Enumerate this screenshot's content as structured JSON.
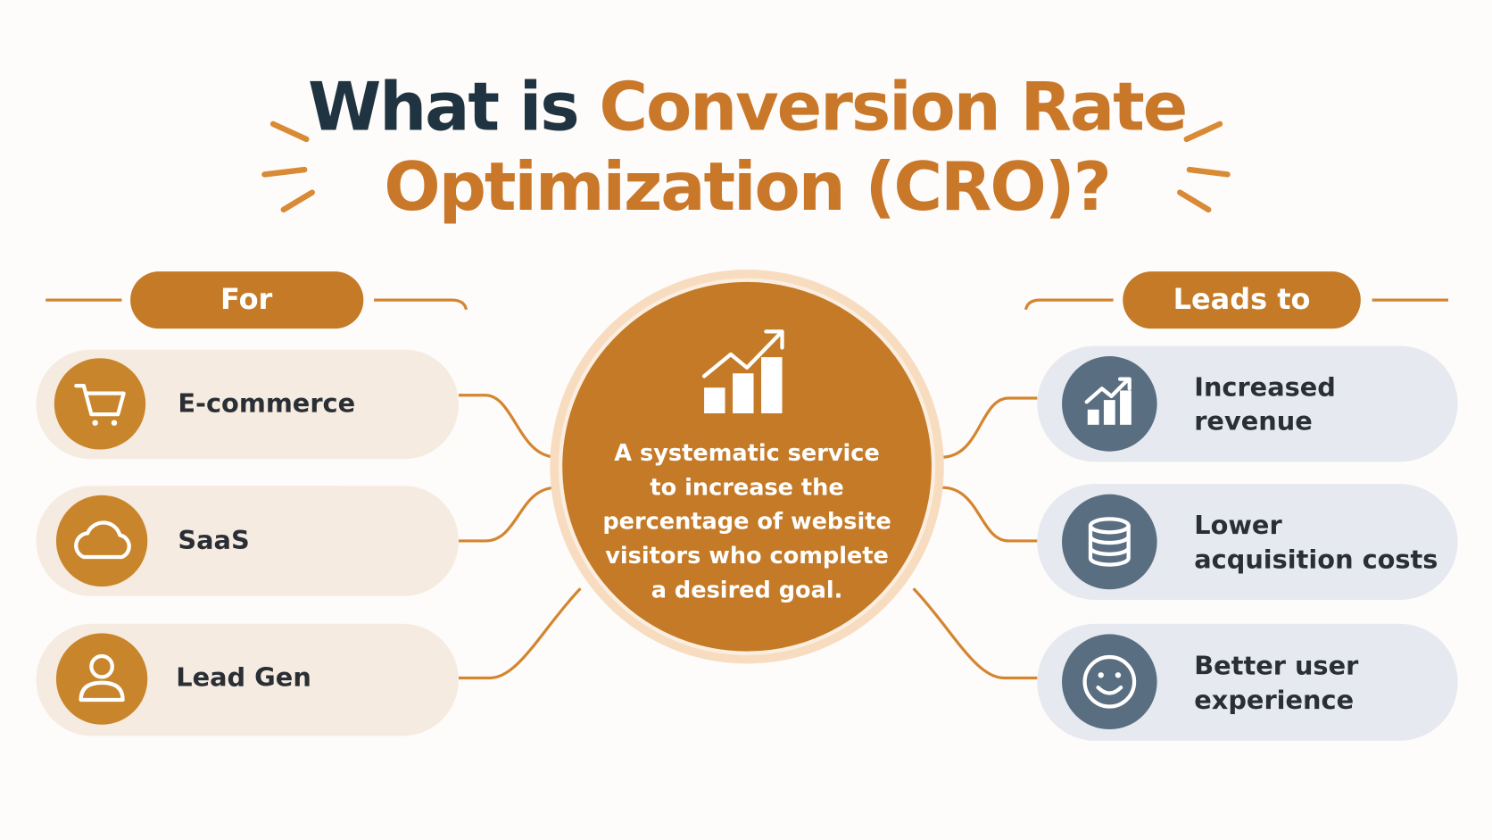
{
  "title": {
    "dark": "What is",
    "accent_line1": "Conversion Rate",
    "accent_line2": "Optimization (CRO)?"
  },
  "left": {
    "label": "For",
    "items": [
      "E-commerce",
      "SaaS",
      "Lead Gen"
    ]
  },
  "center": {
    "lines": [
      "A systematic service",
      "to increase the",
      "percentage of website",
      "visitors who complete",
      "a desired goal."
    ]
  },
  "right": {
    "label": "Leads to",
    "items": [
      [
        "Increased",
        "revenue"
      ],
      [
        "Lower",
        "acquisition costs"
      ],
      [
        "Better user",
        "experience"
      ]
    ]
  }
}
